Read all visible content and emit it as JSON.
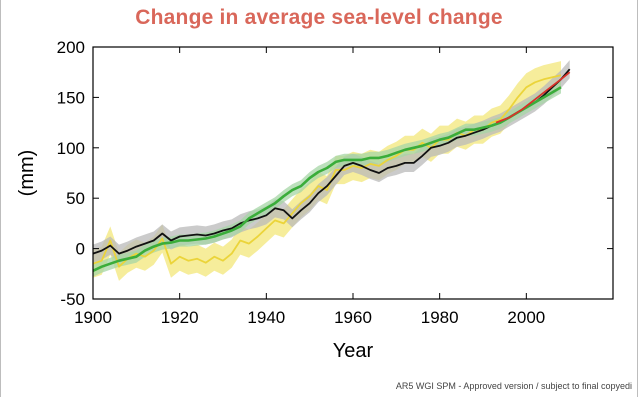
{
  "chart_data": {
    "type": "line",
    "title": "Change in average sea-level change",
    "xlabel": "Year",
    "ylabel": "(mm)",
    "xlim": [
      1900,
      2020
    ],
    "ylim": [
      -50,
      200
    ],
    "xticks": [
      1900,
      1920,
      1940,
      1960,
      1980,
      2000
    ],
    "yticks": [
      -50,
      0,
      50,
      100,
      150,
      200
    ],
    "grid": false,
    "legend": "none",
    "series": [
      {
        "color": "#ebd43a",
        "band_color": "#f3e77a",
        "band_halfwidth": 14,
        "x": [
          1900,
          1902,
          1904,
          1906,
          1908,
          1910,
          1912,
          1914,
          1916,
          1918,
          1920,
          1922,
          1924,
          1926,
          1928,
          1930,
          1932,
          1934,
          1936,
          1938,
          1940,
          1942,
          1944,
          1946,
          1948,
          1950,
          1952,
          1954,
          1956,
          1958,
          1960,
          1962,
          1964,
          1966,
          1968,
          1970,
          1972,
          1974,
          1976,
          1978,
          1980,
          1982,
          1984,
          1986,
          1988,
          1990,
          1992,
          1994,
          1996,
          1998,
          2000,
          2002,
          2004,
          2006,
          2008
        ],
        "y": [
          -15,
          -12,
          8,
          -18,
          -10,
          -5,
          -8,
          -2,
          10,
          -15,
          -8,
          -12,
          -10,
          -14,
          -8,
          -12,
          -5,
          8,
          5,
          12,
          20,
          28,
          25,
          35,
          45,
          52,
          62,
          58,
          78,
          78,
          82,
          80,
          84,
          82,
          88,
          92,
          98,
          98,
          105,
          100,
          108,
          108,
          115,
          112,
          118,
          118,
          125,
          128,
          138,
          150,
          160,
          165,
          168,
          170,
          172
        ]
      },
      {
        "color": "#111111",
        "band_color": "#b9b9b9",
        "band_halfwidth": 9,
        "x": [
          1900,
          1902,
          1904,
          1906,
          1908,
          1910,
          1912,
          1914,
          1916,
          1918,
          1920,
          1922,
          1924,
          1926,
          1928,
          1930,
          1932,
          1934,
          1936,
          1938,
          1940,
          1942,
          1944,
          1946,
          1948,
          1950,
          1952,
          1954,
          1956,
          1958,
          1960,
          1962,
          1964,
          1966,
          1968,
          1970,
          1972,
          1974,
          1976,
          1978,
          1980,
          1982,
          1984,
          1986,
          1988,
          1990,
          1992,
          1994,
          1996,
          1998,
          2000,
          2002,
          2004,
          2006,
          2008,
          2010
        ],
        "y": [
          -5,
          -2,
          3,
          -5,
          -2,
          2,
          5,
          8,
          15,
          8,
          12,
          13,
          14,
          13,
          15,
          18,
          20,
          25,
          28,
          30,
          33,
          40,
          38,
          30,
          38,
          45,
          55,
          62,
          72,
          82,
          85,
          82,
          78,
          75,
          80,
          82,
          85,
          85,
          92,
          100,
          102,
          105,
          110,
          112,
          115,
          118,
          122,
          125,
          130,
          135,
          140,
          145,
          152,
          160,
          168,
          178
        ]
      },
      {
        "color": "#3aad3a",
        "band_color": "#a6d6a6",
        "band_halfwidth": 6,
        "x": [
          1900,
          1902,
          1904,
          1906,
          1908,
          1910,
          1912,
          1914,
          1916,
          1918,
          1920,
          1922,
          1924,
          1926,
          1928,
          1930,
          1932,
          1934,
          1936,
          1938,
          1940,
          1942,
          1944,
          1946,
          1948,
          1950,
          1952,
          1954,
          1956,
          1958,
          1960,
          1962,
          1964,
          1966,
          1968,
          1970,
          1972,
          1974,
          1976,
          1978,
          1980,
          1982,
          1984,
          1986,
          1988,
          1990,
          1992,
          1994,
          1996,
          1998,
          2000,
          2002,
          2004,
          2006,
          2008
        ],
        "y": [
          -22,
          -18,
          -15,
          -12,
          -10,
          -8,
          -2,
          2,
          5,
          6,
          8,
          8,
          9,
          10,
          12,
          15,
          18,
          22,
          30,
          35,
          40,
          45,
          52,
          58,
          62,
          70,
          76,
          80,
          86,
          88,
          88,
          88,
          90,
          90,
          92,
          95,
          98,
          100,
          102,
          105,
          108,
          110,
          114,
          118,
          118,
          120,
          122,
          125,
          130,
          135,
          140,
          145,
          150,
          155,
          160
        ]
      },
      {
        "color": "#d8312a",
        "band_halfwidth": 0,
        "x": [
          1993,
          1996,
          1999,
          2002,
          2005,
          2008,
          2010
        ],
        "y": [
          125,
          130,
          138,
          148,
          158,
          168,
          175
        ]
      }
    ]
  },
  "footer": {
    "text": "AR5 WGI SPM - Approved version / subject to final copyedi"
  }
}
